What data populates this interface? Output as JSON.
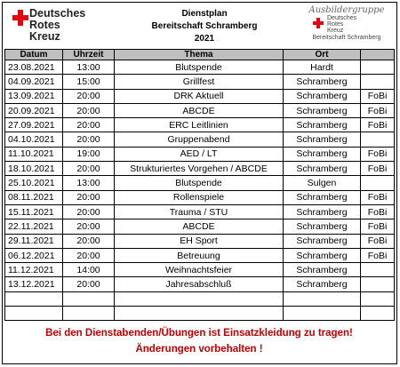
{
  "header": {
    "logo_left": [
      "Deutsches",
      "Rotes",
      "Kreuz"
    ],
    "title": "Dienstplan",
    "subtitle": "Bereitschaft Schramberg",
    "year": "2021",
    "logo_right": {
      "group": "Ausbildergruppe",
      "org": [
        "Deutsches",
        "Rotes",
        "Kreuz"
      ],
      "unit": "Bereitschaft Schramberg"
    }
  },
  "table": {
    "columns": [
      "Datum",
      "Uhrzeit",
      "Thema",
      "Ort"
    ],
    "rows": [
      [
        "23.08.2021",
        "13:00",
        "Blutspende",
        "Hardt",
        null
      ],
      [
        "04.09.2021",
        "15:00",
        "Grillfest",
        "Schramberg",
        null
      ],
      [
        "13.09.2021",
        "20:00",
        "DRK Aktuell",
        "Schramberg",
        "FoBi"
      ],
      [
        "20.09.2021",
        "20:00",
        "ABCDE",
        "Schramberg",
        "FoBi"
      ],
      [
        "27.09.2021",
        "20:00",
        "ERC Leitlinien",
        "Schramberg",
        "FoBi"
      ],
      [
        "04.10.2021",
        "20:00",
        "Gruppenabend",
        "Schramberg",
        null
      ],
      [
        "11.10.2021",
        "19:00",
        "AED / LT",
        "Schramberg",
        "FoBi"
      ],
      [
        "18.10.2021",
        "20:00",
        "Strukturiertes Vorgehen / ABCDE",
        "Schramberg",
        "FoBi"
      ],
      [
        "25.10.2021",
        "13:00",
        "Blutspende",
        "Sulgen",
        null
      ],
      [
        "08.11.2021",
        "20:00",
        "Rollenspiele",
        "Schramberg",
        "FoBi"
      ],
      [
        "15.11.2021",
        "20:00",
        "Trauma / STU",
        "Schramberg",
        "FoBi"
      ],
      [
        "22.11.2021",
        "20:00",
        "ABCDE",
        "Schramberg",
        "FoBi"
      ],
      [
        "29.11.2021",
        "20:00",
        "EH Sport",
        "Schramberg",
        "FoBi"
      ],
      [
        "06.12.2021",
        "20:00",
        "Betreuung",
        "Schramberg",
        "FoBi"
      ],
      [
        "11.12.2021",
        "14:00",
        "Weihnachtsfeier",
        "Schramberg",
        null
      ],
      [
        "13.12.2021",
        "20:00",
        "Jahresabschluß",
        "Schramberg",
        null
      ]
    ]
  },
  "footer": [
    "Bei den Dienstabenden/Übungen ist Einsatzkleidung zu tragen!",
    "Änderungen vorbehalten !"
  ]
}
